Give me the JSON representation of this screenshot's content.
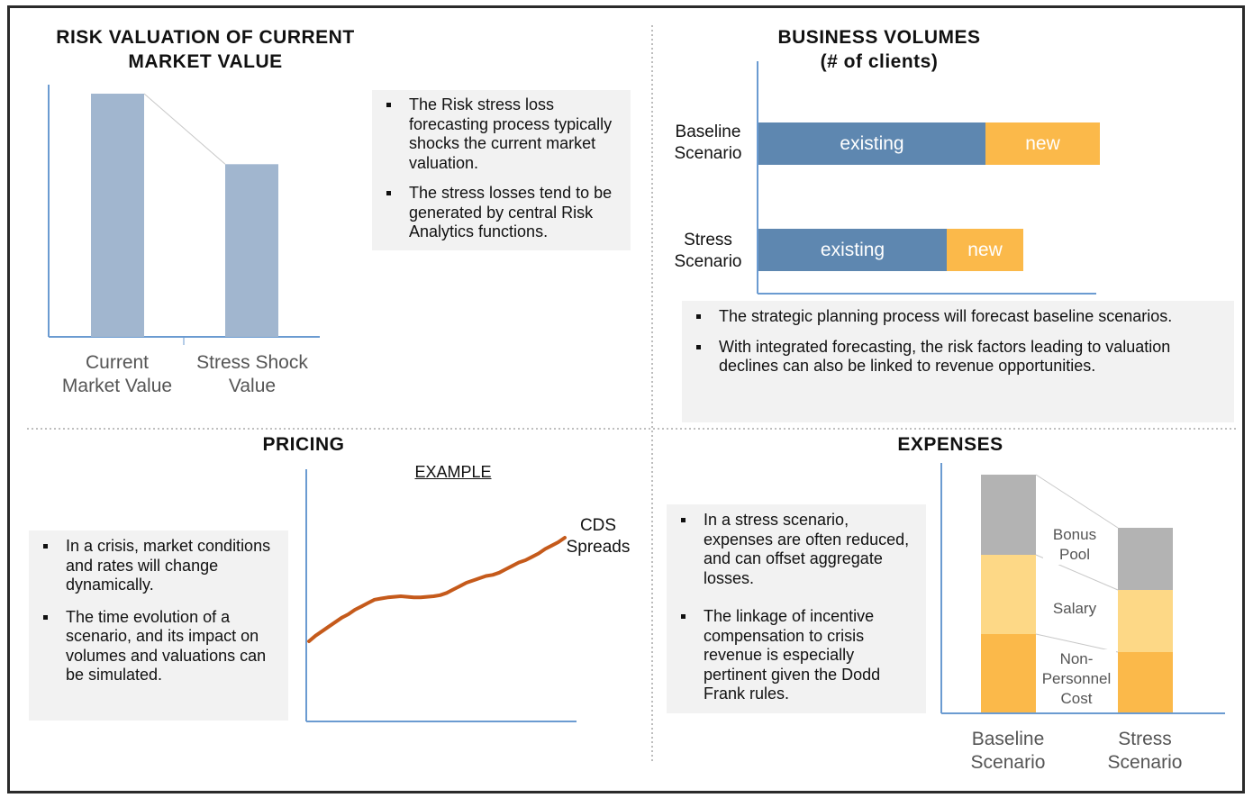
{
  "colors": {
    "frame": "#2b2b2b",
    "axis": "#6b9bd1",
    "mv_bar": "#a1b6cf",
    "existing": "#5e87b0",
    "new": "#fbb94a",
    "bonus": "#b3b3b3",
    "salary": "#fdd886",
    "non_personnel": "#fbb94a",
    "cds_line": "#c55a1b",
    "box_bg": "#f2f2f2"
  },
  "risk_valuation": {
    "title_line1": "RISK VALUATION OF CURRENT",
    "title_line2": "MARKET VALUE",
    "bars": [
      {
        "label_line1": "Current",
        "label_line2": "Market Value",
        "value": 100
      },
      {
        "label_line1": "Stress Shock",
        "label_line2": "Value",
        "value": 71
      }
    ],
    "bullets": [
      "The Risk stress loss forecasting process typically shocks the current market valuation.",
      "The stress losses tend to be generated by central Risk Analytics functions."
    ]
  },
  "business_volumes": {
    "title_line1": "BUSINESS VOLUMES",
    "title_line2": "(# of clients)",
    "rows": [
      {
        "label_line1": "Baseline",
        "label_line2": "Scenario",
        "existing_label": "existing",
        "new_label": "new",
        "existing": 252,
        "new": 127
      },
      {
        "label_line1": "Stress",
        "label_line2": "Scenario",
        "existing_label": "existing",
        "new_label": "new",
        "existing": 209,
        "new": 85
      }
    ],
    "bullets": [
      "The strategic planning process will forecast baseline scenarios.",
      "With integrated forecasting, the risk factors leading to valuation declines can also be linked to revenue opportunities."
    ]
  },
  "pricing": {
    "title": "PRICING",
    "example_label": "EXAMPLE",
    "series_label_line1": "CDS",
    "series_label_line2": "Spreads",
    "series": [
      12,
      17,
      21,
      25,
      29,
      33,
      36,
      40,
      43,
      46,
      49,
      50,
      51,
      51.5,
      52,
      51.5,
      51,
      51,
      51.5,
      52,
      53,
      55,
      58,
      61,
      64,
      66,
      68,
      70,
      71,
      73,
      76,
      79,
      82,
      84,
      87,
      90,
      94,
      97,
      100,
      104
    ],
    "bullets": [
      "In a crisis, market conditions and rates will change dynamically.",
      "The time evolution of a scenario, and its impact on volumes and valuations can be simulated."
    ]
  },
  "expenses": {
    "title": "EXPENSES",
    "segments": {
      "bonus": {
        "line1": "Bonus",
        "line2": "Pool"
      },
      "salary": {
        "line1": "Salary"
      },
      "non_personnel": {
        "line1": "Non-",
        "line2": "Personnel",
        "line3": "Cost"
      }
    },
    "stacks": [
      {
        "label_line1": "Baseline",
        "label_line2": "Scenario",
        "non_personnel": 87,
        "salary": 88,
        "bonus": 89
      },
      {
        "label_line1": "Stress",
        "label_line2": "Scenario",
        "non_personnel": 67,
        "salary": 69,
        "bonus": 69
      }
    ],
    "bullets": [
      "In a stress scenario, expenses are often reduced, and can offset aggregate losses.",
      "The linkage of incentive compensation to crisis revenue is especially pertinent given the Dodd Frank rules."
    ]
  }
}
